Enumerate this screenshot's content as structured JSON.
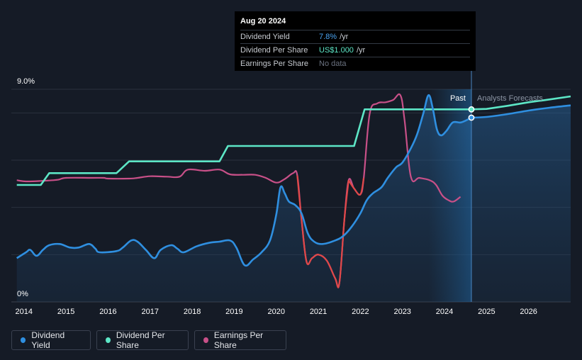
{
  "chart_data": {
    "type": "line",
    "title": "",
    "y_axis": {
      "ylim": [
        0,
        9.0
      ],
      "top_label": "9.0%",
      "bottom_label": "0%"
    },
    "x_axis": {
      "xlim": [
        2013.7,
        2027.0
      ],
      "ticks": [
        "2014",
        "2015",
        "2016",
        "2017",
        "2018",
        "2019",
        "2020",
        "2021",
        "2022",
        "2023",
        "2024",
        "2025",
        "2026"
      ]
    },
    "grid": true,
    "divider_x": 2024.64,
    "past_label": "Past",
    "forecast_label": "Analysts Forecasts",
    "series": [
      {
        "name": "Dividend Yield",
        "color": "#2f8fe0",
        "points": [
          [
            2013.83,
            1.85
          ],
          [
            2014.05,
            2.1
          ],
          [
            2014.15,
            2.2
          ],
          [
            2014.3,
            1.95
          ],
          [
            2014.45,
            2.2
          ],
          [
            2014.6,
            2.4
          ],
          [
            2014.85,
            2.45
          ],
          [
            2015.1,
            2.3
          ],
          [
            2015.3,
            2.3
          ],
          [
            2015.55,
            2.45
          ],
          [
            2015.7,
            2.25
          ],
          [
            2015.8,
            2.1
          ],
          [
            2016.2,
            2.15
          ],
          [
            2016.35,
            2.3
          ],
          [
            2016.55,
            2.6
          ],
          [
            2016.7,
            2.55
          ],
          [
            2016.9,
            2.2
          ],
          [
            2017.1,
            1.85
          ],
          [
            2017.25,
            2.2
          ],
          [
            2017.5,
            2.4
          ],
          [
            2017.65,
            2.25
          ],
          [
            2017.8,
            2.1
          ],
          [
            2018.1,
            2.35
          ],
          [
            2018.4,
            2.5
          ],
          [
            2018.65,
            2.55
          ],
          [
            2018.9,
            2.6
          ],
          [
            2019.05,
            2.3
          ],
          [
            2019.25,
            1.55
          ],
          [
            2019.45,
            1.8
          ],
          [
            2019.65,
            2.1
          ],
          [
            2019.85,
            2.6
          ],
          [
            2020.0,
            3.7
          ],
          [
            2020.1,
            4.85
          ],
          [
            2020.2,
            4.6
          ],
          [
            2020.3,
            4.25
          ],
          [
            2020.45,
            4.1
          ],
          [
            2020.6,
            3.75
          ],
          [
            2020.75,
            2.9
          ],
          [
            2020.9,
            2.55
          ],
          [
            2021.1,
            2.45
          ],
          [
            2021.4,
            2.6
          ],
          [
            2021.6,
            2.8
          ],
          [
            2021.8,
            3.2
          ],
          [
            2022.0,
            3.75
          ],
          [
            2022.15,
            4.3
          ],
          [
            2022.3,
            4.6
          ],
          [
            2022.5,
            4.85
          ],
          [
            2022.65,
            5.25
          ],
          [
            2022.85,
            5.7
          ],
          [
            2023.0,
            5.9
          ],
          [
            2023.2,
            6.5
          ],
          [
            2023.35,
            7.1
          ],
          [
            2023.5,
            8.0
          ],
          [
            2023.62,
            8.75
          ],
          [
            2023.72,
            8.2
          ],
          [
            2023.82,
            7.3
          ],
          [
            2023.92,
            7.05
          ],
          [
            2024.05,
            7.25
          ],
          [
            2024.2,
            7.6
          ],
          [
            2024.4,
            7.6
          ],
          [
            2024.64,
            7.8
          ]
        ]
      },
      {
        "name": "Dividend Yield Forecast",
        "color": "#2f8fe0",
        "points": [
          [
            2024.64,
            7.8
          ],
          [
            2025.0,
            7.83
          ],
          [
            2025.5,
            7.95
          ],
          [
            2026.0,
            8.1
          ],
          [
            2026.5,
            8.22
          ],
          [
            2027.0,
            8.32
          ]
        ]
      },
      {
        "name": "Dividend Per Share",
        "color": "#5de6c6",
        "points": [
          [
            2013.83,
            4.95
          ],
          [
            2014.4,
            4.95
          ],
          [
            2014.6,
            5.45
          ],
          [
            2015.0,
            5.45
          ],
          [
            2016.0,
            5.45
          ],
          [
            2016.2,
            5.45
          ],
          [
            2016.5,
            5.95
          ],
          [
            2017.0,
            5.95
          ],
          [
            2018.0,
            5.95
          ],
          [
            2018.65,
            5.95
          ],
          [
            2018.85,
            6.6
          ],
          [
            2019.5,
            6.6
          ],
          [
            2020.5,
            6.6
          ],
          [
            2021.5,
            6.6
          ],
          [
            2021.85,
            6.6
          ],
          [
            2022.1,
            8.15
          ],
          [
            2023.0,
            8.15
          ],
          [
            2024.0,
            8.15
          ],
          [
            2024.64,
            8.15
          ]
        ]
      },
      {
        "name": "Dividend Per Share Forecast",
        "color": "#5de6c6",
        "points": [
          [
            2024.64,
            8.15
          ],
          [
            2025.0,
            8.17
          ],
          [
            2025.5,
            8.3
          ],
          [
            2026.0,
            8.45
          ],
          [
            2026.5,
            8.57
          ],
          [
            2027.0,
            8.7
          ]
        ]
      },
      {
        "name": "Earnings Per Share",
        "color": "#c85088",
        "points": [
          [
            2013.83,
            5.15
          ],
          [
            2014.05,
            5.1
          ],
          [
            2014.4,
            5.12
          ],
          [
            2014.8,
            5.17
          ],
          [
            2015.0,
            5.25
          ],
          [
            2015.6,
            5.25
          ],
          [
            2015.9,
            5.25
          ],
          [
            2016.0,
            5.22
          ],
          [
            2016.5,
            5.22
          ],
          [
            2016.7,
            5.25
          ],
          [
            2017.0,
            5.32
          ],
          [
            2017.4,
            5.3
          ],
          [
            2017.7,
            5.3
          ],
          [
            2017.9,
            5.6
          ],
          [
            2018.3,
            5.55
          ],
          [
            2018.65,
            5.6
          ],
          [
            2018.9,
            5.4
          ],
          [
            2019.2,
            5.38
          ],
          [
            2019.5,
            5.38
          ],
          [
            2019.75,
            5.25
          ],
          [
            2020.0,
            5.05
          ],
          [
            2020.2,
            5.2
          ],
          [
            2020.4,
            5.45
          ],
          [
            2020.5,
            5.35
          ],
          [
            2020.6,
            3.5
          ],
          [
            2020.72,
            1.7
          ],
          [
            2020.85,
            1.85
          ],
          [
            2021.0,
            2.0
          ],
          [
            2021.2,
            1.75
          ],
          [
            2021.4,
            1.0
          ],
          [
            2021.5,
            0.8
          ],
          [
            2021.62,
            3.5
          ],
          [
            2021.72,
            5.15
          ],
          [
            2021.85,
            4.8
          ],
          [
            2022.0,
            4.55
          ],
          [
            2022.08,
            5.25
          ],
          [
            2022.22,
            7.95
          ],
          [
            2022.4,
            8.4
          ],
          [
            2022.6,
            8.45
          ],
          [
            2022.78,
            8.55
          ],
          [
            2022.95,
            8.75
          ],
          [
            2023.05,
            7.7
          ],
          [
            2023.2,
            5.3
          ],
          [
            2023.4,
            5.25
          ],
          [
            2023.65,
            5.15
          ],
          [
            2023.8,
            4.95
          ],
          [
            2023.95,
            4.5
          ],
          [
            2024.1,
            4.3
          ],
          [
            2024.22,
            4.25
          ],
          [
            2024.38,
            4.45
          ]
        ]
      }
    ],
    "markers": [
      {
        "series": "Dividend Per Share",
        "x": 2024.64,
        "y": 8.15
      },
      {
        "series": "Dividend Yield",
        "x": 2024.64,
        "y": 7.8
      }
    ],
    "legend": [
      {
        "label": "Dividend Yield",
        "color": "#2f8fe0"
      },
      {
        "label": "Dividend Per Share",
        "color": "#5de6c6"
      },
      {
        "label": "Earnings Per Share",
        "color": "#c85088"
      }
    ],
    "eps_negative_color": "#e04848"
  },
  "tooltip": {
    "date": "Aug 20 2024",
    "rows": [
      {
        "label": "Dividend Yield",
        "value": "7.8%",
        "unit": "/yr",
        "color": "#4aa3f0"
      },
      {
        "label": "Dividend Per Share",
        "value": "US$1.000",
        "unit": "/yr",
        "color": "#5de6c6"
      },
      {
        "label": "Earnings Per Share",
        "value": "No data",
        "unit": "",
        "color": "#6b7280"
      }
    ]
  }
}
